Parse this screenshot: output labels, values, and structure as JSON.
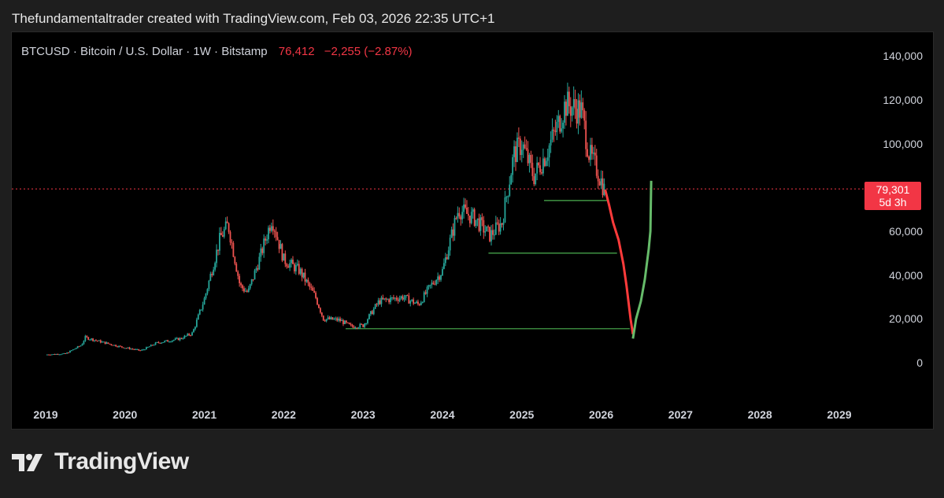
{
  "attribution": "Thefundamentaltrader created with TradingView.com, Feb 03, 2026 22:35 UTC+1",
  "legend": {
    "symbol": "BTCUSD · Bitcoin / U.S. Dollar · 1W · Bitstamp",
    "price": "76,412",
    "change": "−2,255 (−2.87%)"
  },
  "price_badge": {
    "price": "79,301",
    "countdown": "5d 3h"
  },
  "footer": {
    "brand": "TradingView",
    "logo_icon": "tradingview-logo-icon"
  },
  "colors": {
    "up": "#26a69a",
    "down": "#ef5350",
    "projection_up": "#66bb6a",
    "projection_down": "#ff3b3b",
    "level_line": "#4caf50",
    "price_line": "#f23645",
    "background": "#000000"
  },
  "chart_data": {
    "type": "candlestick",
    "title": "",
    "xlabel": "",
    "ylabel": "",
    "ylim": [
      -8000,
      145000
    ],
    "xlim": [
      2018.95,
      2029.3
    ],
    "x_ticks": [
      "2019",
      "2020",
      "2021",
      "2022",
      "2023",
      "2024",
      "2025",
      "2026",
      "2027",
      "2028",
      "2029"
    ],
    "y_ticks": [
      {
        "value": 0,
        "label": "0"
      },
      {
        "value": 20000,
        "label": "20,000"
      },
      {
        "value": 40000,
        "label": "40,000"
      },
      {
        "value": 60000,
        "label": "60,000"
      },
      {
        "value": 100000,
        "label": "100,000"
      },
      {
        "value": 120000,
        "label": "120,000"
      },
      {
        "value": 140000,
        "label": "140,000"
      }
    ],
    "current_price_line": 79301,
    "price_path": [
      [
        2019.0,
        3700
      ],
      [
        2019.25,
        4100
      ],
      [
        2019.45,
        8000
      ],
      [
        2019.5,
        11500
      ],
      [
        2019.7,
        9500
      ],
      [
        2019.95,
        7200
      ],
      [
        2020.2,
        5500
      ],
      [
        2020.4,
        9000
      ],
      [
        2020.7,
        11000
      ],
      [
        2020.85,
        13500
      ],
      [
        2021.0,
        29000
      ],
      [
        2021.2,
        57000
      ],
      [
        2021.3,
        63000
      ],
      [
        2021.45,
        35000
      ],
      [
        2021.55,
        32000
      ],
      [
        2021.7,
        48000
      ],
      [
        2021.85,
        66000
      ],
      [
        2022.0,
        47000
      ],
      [
        2022.2,
        42000
      ],
      [
        2022.4,
        30000
      ],
      [
        2022.5,
        20000
      ],
      [
        2022.7,
        19500
      ],
      [
        2022.85,
        16500
      ],
      [
        2023.0,
        17000
      ],
      [
        2023.2,
        28000
      ],
      [
        2023.5,
        30000
      ],
      [
        2023.7,
        26500
      ],
      [
        2023.85,
        35000
      ],
      [
        2024.0,
        42000
      ],
      [
        2024.2,
        70000
      ],
      [
        2024.4,
        66000
      ],
      [
        2024.6,
        58000
      ],
      [
        2024.75,
        64000
      ],
      [
        2024.9,
        95000
      ],
      [
        2025.0,
        100000
      ],
      [
        2025.15,
        85000
      ],
      [
        2025.3,
        95000
      ],
      [
        2025.45,
        108000
      ],
      [
        2025.55,
        118000
      ],
      [
        2025.75,
        115000
      ],
      [
        2025.85,
        95000
      ],
      [
        2025.95,
        88000
      ],
      [
        2026.05,
        78000
      ]
    ],
    "projection": {
      "down": [
        [
          2026.05,
          79000
        ],
        [
          2026.1,
          72000
        ],
        [
          2026.15,
          64000
        ],
        [
          2026.22,
          56000
        ],
        [
          2026.28,
          45000
        ],
        [
          2026.32,
          35000
        ],
        [
          2026.37,
          20000
        ],
        [
          2026.4,
          13000
        ]
      ],
      "up": [
        [
          2026.4,
          11000
        ],
        [
          2026.44,
          20000
        ],
        [
          2026.5,
          28000
        ],
        [
          2026.55,
          38000
        ],
        [
          2026.6,
          52000
        ],
        [
          2026.62,
          60000
        ],
        [
          2026.63,
          83000
        ]
      ]
    },
    "levels": [
      {
        "price": 74000,
        "from": 2025.28,
        "to": 2026.08
      },
      {
        "price": 50000,
        "from": 2024.58,
        "to": 2026.2
      },
      {
        "price": 15500,
        "from": 2022.78,
        "to": 2026.36
      }
    ]
  }
}
